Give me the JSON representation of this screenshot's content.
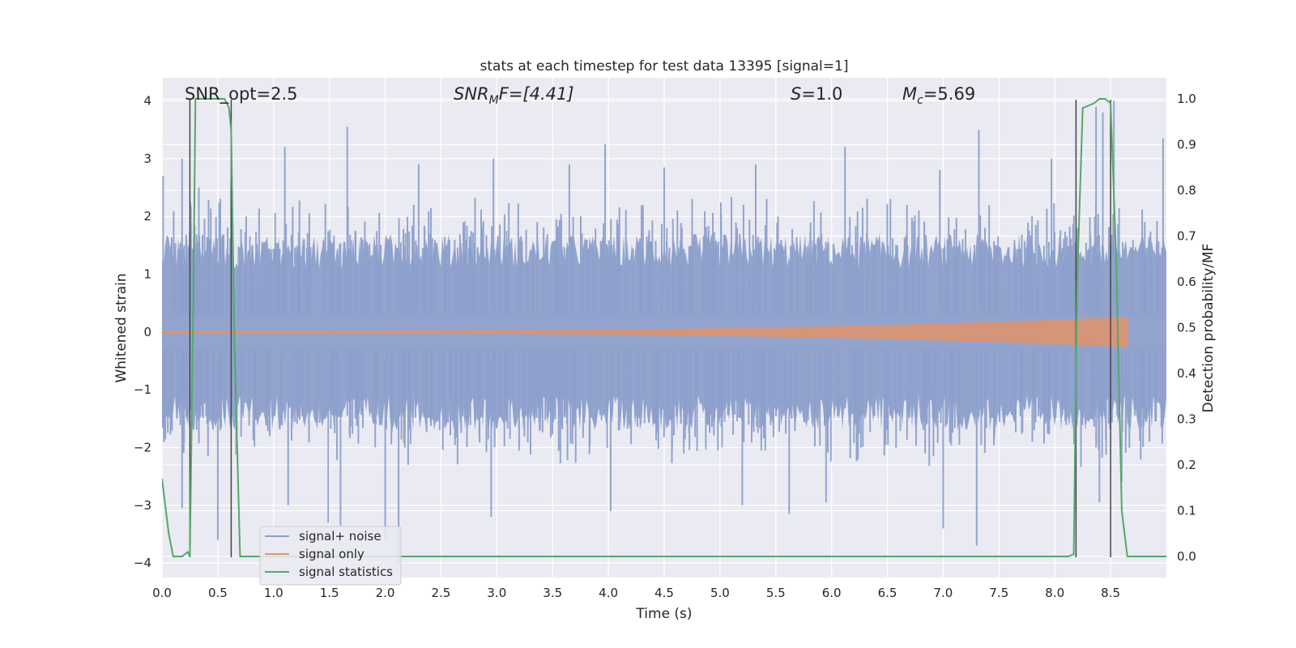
{
  "chart_data": {
    "type": "line",
    "title": "stats at each timestep for test data 13395 [signal=1]",
    "xlabel": "Time (s)",
    "ylabel": "Whitened strain",
    "y2label": "Detection probability/MF",
    "xlim": [
      0,
      9
    ],
    "ylim": [
      -4.25,
      4.4
    ],
    "y2lim": [
      -0.046,
      1.046
    ],
    "xticks": [
      "0.0",
      "0.5",
      "1.0",
      "1.5",
      "2.0",
      "2.5",
      "3.0",
      "3.5",
      "4.0",
      "4.5",
      "5.0",
      "5.5",
      "6.0",
      "6.5",
      "7.0",
      "7.5",
      "8.0",
      "8.5"
    ],
    "yticks": [
      "4",
      "3",
      "2",
      "1",
      "0",
      "−1",
      "−2",
      "−3",
      "−4"
    ],
    "y2ticks": [
      "1.0",
      "0.9",
      "0.8",
      "0.7",
      "0.6",
      "0.5",
      "0.4",
      "0.3",
      "0.2",
      "0.1",
      "0.0"
    ],
    "grid": true,
    "legend_position": "lower-left",
    "annotations": {
      "snr_opt": "SNR_opt=2.5",
      "snr_mf_main": "SNR",
      "snr_mf_sub": "M",
      "snr_mf_rest": "F=[4.41]",
      "s_main": "S",
      "s_rest": "=1.0",
      "mc_main": "M",
      "mc_sub": "c",
      "mc_rest": "=5.69"
    },
    "series": [
      {
        "name": "signal+ noise",
        "color": "#8da0cb",
        "noise_envelope": {
          "positive_peaks": [
            [
              0.01,
              2.7
            ],
            [
              0.18,
              3.0
            ],
            [
              0.33,
              2.5
            ],
            [
              0.62,
              2.6
            ],
            [
              1.1,
              3.2
            ],
            [
              1.66,
              3.55
            ],
            [
              2.3,
              2.9
            ],
            [
              2.97,
              3.0
            ],
            [
              3.65,
              2.9
            ],
            [
              3.97,
              3.25
            ],
            [
              4.5,
              2.85
            ],
            [
              5.32,
              2.9
            ],
            [
              6.12,
              3.2
            ],
            [
              6.97,
              2.8
            ],
            [
              7.32,
              3.5
            ],
            [
              7.97,
              3.0
            ],
            [
              8.37,
              3.9
            ],
            [
              8.43,
              3.8
            ],
            [
              8.53,
              4.0
            ],
            [
              8.97,
              3.35
            ]
          ],
          "negative_peaks": [
            [
              0.18,
              -3.05
            ],
            [
              0.5,
              -3.6
            ],
            [
              1.13,
              -3.0
            ],
            [
              1.49,
              -3.3
            ],
            [
              1.6,
              -3.35
            ],
            [
              2.0,
              -3.6
            ],
            [
              2.12,
              -4.0
            ],
            [
              2.95,
              -3.2
            ],
            [
              4.02,
              -3.1
            ],
            [
              5.2,
              -3.0
            ],
            [
              5.62,
              -3.15
            ],
            [
              5.95,
              -2.95
            ],
            [
              7.0,
              -3.4
            ],
            [
              7.3,
              -3.7
            ],
            [
              8.4,
              -2.95
            ],
            [
              8.6,
              -2.6
            ]
          ],
          "typical_amplitude": 1.1
        }
      },
      {
        "name": "signal only",
        "color": "#dd9470",
        "chirp": {
          "start_x": 0.0,
          "end_x": 8.65,
          "start_amplitude": 0.01,
          "end_amplitude": 0.25
        }
      },
      {
        "name": "signal statistics",
        "color": "#55a868",
        "axis": "y2",
        "x": [
          0.0,
          0.06,
          0.1,
          0.18,
          0.23,
          0.25,
          0.28,
          0.3,
          0.35,
          0.52,
          0.56,
          0.6,
          0.62,
          0.65,
          0.7,
          0.8,
          1.5,
          3.0,
          5.0,
          7.3,
          8.0,
          8.12,
          8.17,
          8.2,
          8.25,
          8.3,
          8.35,
          8.4,
          8.45,
          8.5,
          8.55,
          8.6,
          8.65,
          8.75,
          8.9,
          9.0
        ],
        "y": [
          0.17,
          0.05,
          0.0,
          0.0,
          0.01,
          0.0,
          0.55,
          1.0,
          1.0,
          1.0,
          1.0,
          0.98,
          0.93,
          0.45,
          0.0,
          0.0,
          0.0,
          0.0,
          0.0,
          0.0,
          0.0,
          0.0,
          0.005,
          0.6,
          0.98,
          0.985,
          0.99,
          1.0,
          1.0,
          0.99,
          0.65,
          0.1,
          0.0,
          0.0,
          0.0,
          0.0
        ]
      }
    ],
    "vertical_markers": {
      "color": "#444444",
      "x": [
        0.25,
        0.62,
        8.19,
        8.5
      ],
      "y_range": [
        -3.9,
        4.02
      ]
    }
  }
}
